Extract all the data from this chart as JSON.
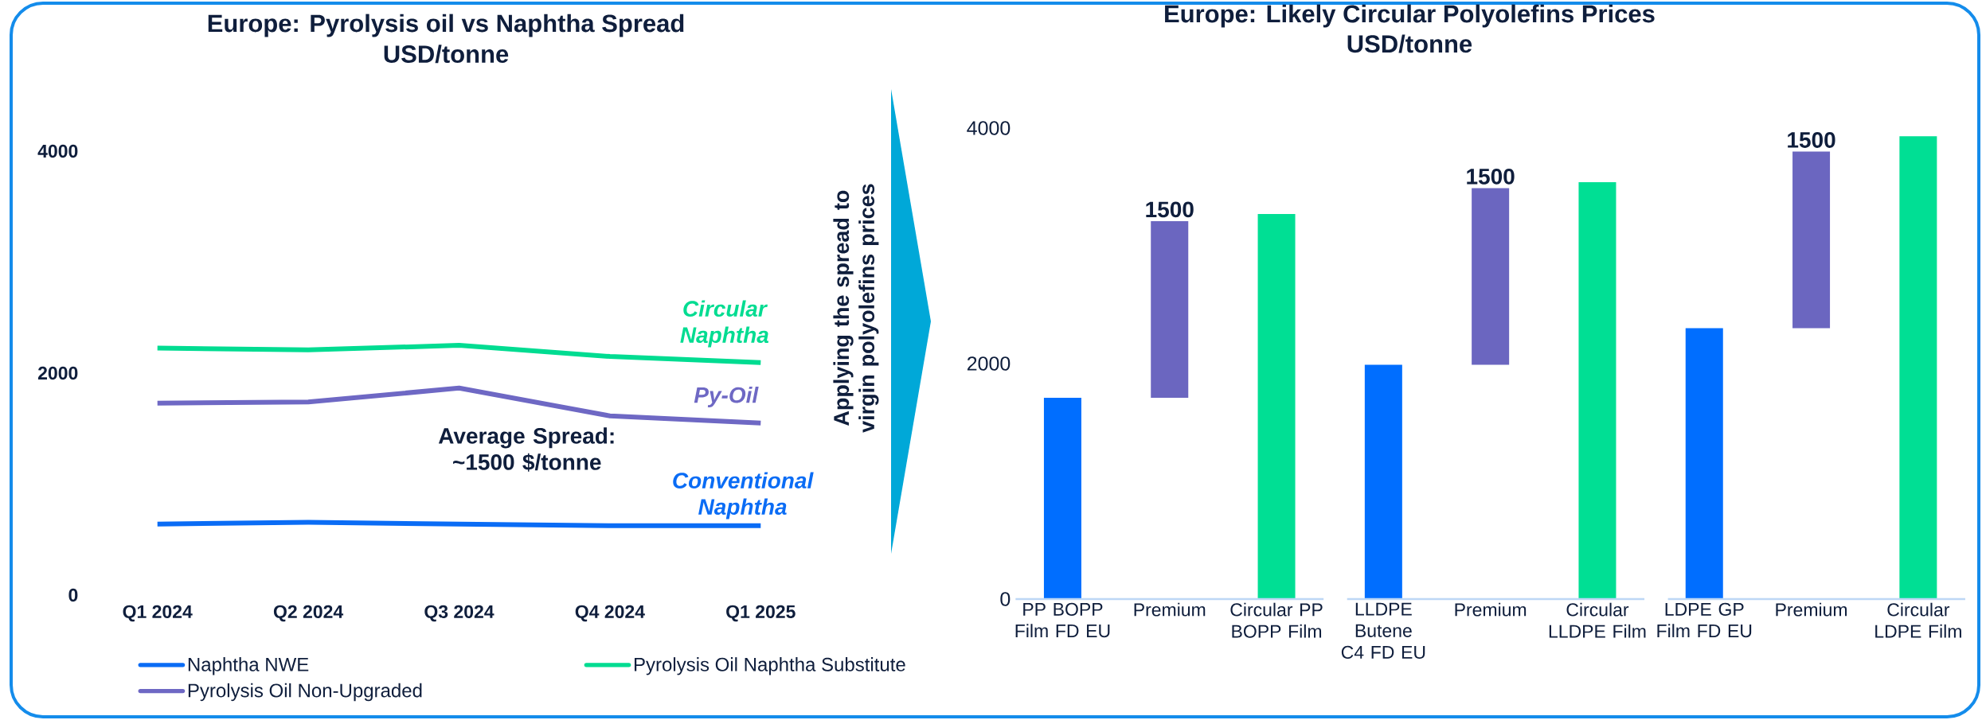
{
  "chart_data": [
    {
      "type": "line",
      "title": "Europe: Pyrolysis oil vs Naphtha Spread",
      "subtitle": "USD/tonne",
      "categories": [
        "Q1 2024",
        "Q2 2024",
        "Q3 2024",
        "Q4 2024",
        "Q1 2025"
      ],
      "series": [
        {
          "name": "Naphtha NWE",
          "color": "#0A6CF5",
          "values": [
            640,
            655,
            640,
            625,
            625
          ]
        },
        {
          "name": "Pyrolysis Oil Naphtha Substitute",
          "color": "#00DC91",
          "values": [
            2225,
            2210,
            2250,
            2150,
            2095
          ]
        },
        {
          "name": "Pyrolysis Oil Non-Upgraded",
          "color": "#6E68C4",
          "values": [
            1730,
            1740,
            1865,
            1615,
            1550
          ]
        }
      ],
      "ylim": [
        0,
        4000
      ],
      "yticks": [
        0,
        2000,
        4000
      ],
      "legend": "bottom",
      "annotations": [
        "Circular Naphtha",
        "Py-Oil",
        "Conventional Naphtha",
        "Average Spread: ~1500 $/tonne"
      ]
    },
    {
      "type": "bar",
      "title": "Europe: Likely Circular Polyolefins Prices",
      "subtitle": "USD/tonne",
      "categories": [
        "PP BOPP Film FD EU",
        "Premium",
        "Circular PP BOPP Film",
        "LLDPE Butene C4 FD EU",
        "Premium",
        "Circular LLDPE Film",
        "LDPE GP Film FD EU",
        "Premium",
        "Circular LDPE Film"
      ],
      "values": [
        1710,
        1500,
        3270,
        1990,
        1500,
        3540,
        2300,
        1500,
        3930
      ],
      "base": [
        0,
        1710,
        0,
        0,
        1990,
        0,
        0,
        2300,
        0
      ],
      "colors": [
        "#006EFF",
        "#6B66C0",
        "#00DF94",
        "#006EFF",
        "#6B66C0",
        "#00DF94",
        "#006EFF",
        "#6B66C0",
        "#00DF94"
      ],
      "value_labels": [
        null,
        "1500",
        null,
        null,
        "1500",
        null,
        null,
        "1500",
        null
      ],
      "ylim": [
        0,
        4000
      ],
      "yticks": [
        0,
        2000,
        4000
      ],
      "annotations": [
        "Applying the spread to virgin polyolefins prices"
      ]
    }
  ]
}
